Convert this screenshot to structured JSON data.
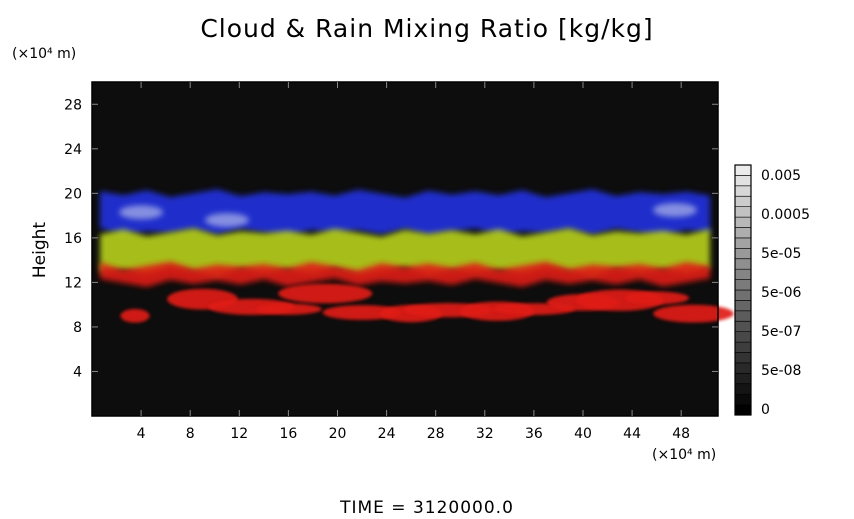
{
  "chart_data": {
    "type": "heatmap",
    "title": "Cloud & Rain Mixing Ratio [kg/kg]",
    "ylabel": "Height",
    "y_unit": "(×10⁴ m)",
    "x_unit": "(×10⁴ m)",
    "x_ticks": [
      4,
      8,
      12,
      16,
      20,
      24,
      28,
      32,
      36,
      40,
      44,
      48
    ],
    "y_ticks": [
      4,
      8,
      12,
      16,
      20,
      24,
      28
    ],
    "xlim": [
      0,
      51
    ],
    "ylim": [
      0,
      30
    ],
    "colorbar": {
      "labels": [
        "0.005",
        "0.0005",
        "5e-05",
        "5e-06",
        "5e-07",
        "5e-08",
        "0"
      ]
    },
    "layers": [
      {
        "color": "#2230e0",
        "y_range": [
          16.5,
          20
        ]
      },
      {
        "color": "#b8d21e",
        "y_range": [
          13,
          16.5
        ]
      },
      {
        "color": "#e01a18",
        "y_range": [
          12,
          13.5
        ]
      },
      {
        "color": "#e01a18",
        "y_range": [
          8.5,
          11
        ]
      }
    ]
  },
  "footer": {
    "time": "TIME = 3120000.0"
  }
}
